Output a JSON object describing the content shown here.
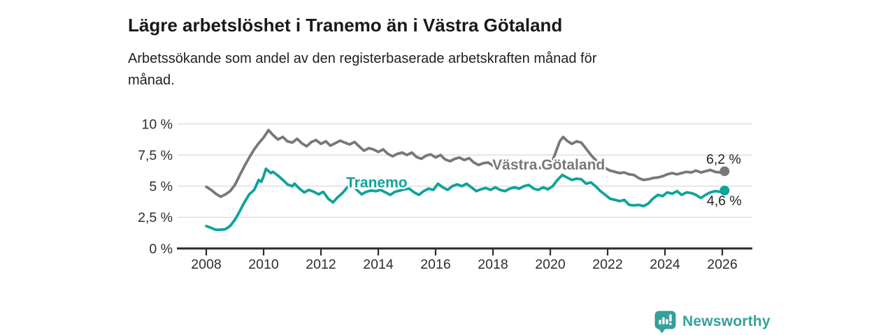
{
  "header": {
    "title": "Lägre arbetslöshet i Tranemo än i Västra Götaland",
    "subtitle_lines": [
      "Arbetssökande som andel av den registerbaserade arbetskraften månad för",
      "månad."
    ]
  },
  "footer": {
    "brand": "Newsworthy",
    "logo_icon": "bar-chart-speech-bubble-icon"
  },
  "colors": {
    "series_gray": "#787878",
    "series_teal": "#0fa39a",
    "axis": "#2b2b2b",
    "tick_text": "#2d2d2d",
    "grid": "#d9d9d9",
    "annotation_text": "#222222",
    "logo_teal": "#36a09a",
    "background": "#ffffff"
  },
  "chart_data": {
    "type": "line",
    "unit": "%",
    "x_domain": [
      2007,
      2027
    ],
    "y_domain": [
      0,
      10
    ],
    "grid": true,
    "legend_position": "inline-labels-on-lines",
    "y_ticks": [
      {
        "value": 0,
        "label": "0 %"
      },
      {
        "value": 2.5,
        "label": "2,5 %"
      },
      {
        "value": 5,
        "label": "5 %"
      },
      {
        "value": 7.5,
        "label": "7,5 %"
      },
      {
        "value": 10,
        "label": "10 %"
      }
    ],
    "x_ticks": [
      {
        "value": 2008,
        "label": "2008"
      },
      {
        "value": 2010,
        "label": "2010"
      },
      {
        "value": 2012,
        "label": "2012"
      },
      {
        "value": 2014,
        "label": "2014"
      },
      {
        "value": 2016,
        "label": "2016"
      },
      {
        "value": 2018,
        "label": "2018"
      },
      {
        "value": 2020,
        "label": "2020"
      },
      {
        "value": 2022,
        "label": "2022"
      },
      {
        "value": 2024,
        "label": "2024"
      },
      {
        "value": 2026,
        "label": "2026"
      }
    ],
    "series": [
      {
        "name": "Västra Götaland",
        "color": "#787878",
        "end_value": 6.2,
        "end_label": "6,2 %",
        "points": [
          [
            2008.0,
            4.95
          ],
          [
            2008.17,
            4.7
          ],
          [
            2008.33,
            4.4
          ],
          [
            2008.5,
            4.15
          ],
          [
            2008.67,
            4.35
          ],
          [
            2008.83,
            4.6
          ],
          [
            2009.0,
            5.1
          ],
          [
            2009.17,
            5.9
          ],
          [
            2009.33,
            6.6
          ],
          [
            2009.5,
            7.3
          ],
          [
            2009.67,
            7.95
          ],
          [
            2009.83,
            8.45
          ],
          [
            2010.0,
            8.9
          ],
          [
            2010.17,
            9.5
          ],
          [
            2010.33,
            9.1
          ],
          [
            2010.5,
            8.75
          ],
          [
            2010.67,
            8.95
          ],
          [
            2010.83,
            8.6
          ],
          [
            2011.0,
            8.5
          ],
          [
            2011.17,
            8.8
          ],
          [
            2011.33,
            8.45
          ],
          [
            2011.5,
            8.2
          ],
          [
            2011.67,
            8.55
          ],
          [
            2011.83,
            8.7
          ],
          [
            2012.0,
            8.4
          ],
          [
            2012.17,
            8.6
          ],
          [
            2012.33,
            8.25
          ],
          [
            2012.5,
            8.45
          ],
          [
            2012.67,
            8.65
          ],
          [
            2012.83,
            8.5
          ],
          [
            2013.0,
            8.35
          ],
          [
            2013.17,
            8.55
          ],
          [
            2013.33,
            8.2
          ],
          [
            2013.5,
            7.85
          ],
          [
            2013.67,
            8.05
          ],
          [
            2013.83,
            7.95
          ],
          [
            2014.0,
            7.75
          ],
          [
            2014.17,
            7.95
          ],
          [
            2014.33,
            7.6
          ],
          [
            2014.5,
            7.4
          ],
          [
            2014.67,
            7.6
          ],
          [
            2014.83,
            7.7
          ],
          [
            2015.0,
            7.5
          ],
          [
            2015.17,
            7.7
          ],
          [
            2015.33,
            7.35
          ],
          [
            2015.5,
            7.2
          ],
          [
            2015.67,
            7.45
          ],
          [
            2015.83,
            7.55
          ],
          [
            2016.0,
            7.3
          ],
          [
            2016.17,
            7.5
          ],
          [
            2016.33,
            7.15
          ],
          [
            2016.5,
            7.0
          ],
          [
            2016.67,
            7.2
          ],
          [
            2016.83,
            7.3
          ],
          [
            2017.0,
            7.1
          ],
          [
            2017.17,
            7.25
          ],
          [
            2017.33,
            6.9
          ],
          [
            2017.5,
            6.7
          ],
          [
            2017.67,
            6.85
          ],
          [
            2017.83,
            6.9
          ],
          [
            2018.0,
            6.65
          ],
          [
            2018.17,
            6.8
          ],
          [
            2018.33,
            6.5
          ],
          [
            2018.5,
            6.4
          ],
          [
            2018.67,
            6.55
          ],
          [
            2018.83,
            6.6
          ],
          [
            2019.0,
            6.5
          ],
          [
            2019.17,
            6.6
          ],
          [
            2019.33,
            6.4
          ],
          [
            2019.5,
            6.35
          ],
          [
            2019.67,
            6.5
          ],
          [
            2019.83,
            6.55
          ],
          [
            2020.0,
            6.6
          ],
          [
            2020.17,
            7.6
          ],
          [
            2020.33,
            8.6
          ],
          [
            2020.45,
            8.95
          ],
          [
            2020.58,
            8.65
          ],
          [
            2020.75,
            8.4
          ],
          [
            2020.92,
            8.6
          ],
          [
            2021.08,
            8.5
          ],
          [
            2021.25,
            8.0
          ],
          [
            2021.42,
            7.5
          ],
          [
            2021.58,
            7.1
          ],
          [
            2021.75,
            6.8
          ],
          [
            2021.92,
            6.45
          ],
          [
            2022.08,
            6.25
          ],
          [
            2022.25,
            6.15
          ],
          [
            2022.42,
            6.05
          ],
          [
            2022.58,
            6.1
          ],
          [
            2022.75,
            5.95
          ],
          [
            2022.92,
            5.9
          ],
          [
            2023.08,
            5.65
          ],
          [
            2023.25,
            5.5
          ],
          [
            2023.42,
            5.55
          ],
          [
            2023.58,
            5.65
          ],
          [
            2023.75,
            5.7
          ],
          [
            2023.92,
            5.8
          ],
          [
            2024.08,
            5.95
          ],
          [
            2024.25,
            6.05
          ],
          [
            2024.42,
            5.95
          ],
          [
            2024.58,
            6.05
          ],
          [
            2024.75,
            6.15
          ],
          [
            2024.92,
            6.1
          ],
          [
            2025.08,
            6.25
          ],
          [
            2025.25,
            6.1
          ],
          [
            2025.42,
            6.2
          ],
          [
            2025.58,
            6.3
          ],
          [
            2025.75,
            6.15
          ],
          [
            2025.92,
            6.1
          ],
          [
            2026.08,
            6.2
          ]
        ]
      },
      {
        "name": "Tranemo",
        "color": "#0fa39a",
        "end_value": 4.6,
        "end_label": "4,6 %",
        "points": [
          [
            2008.0,
            1.8
          ],
          [
            2008.17,
            1.65
          ],
          [
            2008.33,
            1.5
          ],
          [
            2008.5,
            1.5
          ],
          [
            2008.67,
            1.55
          ],
          [
            2008.83,
            1.8
          ],
          [
            2009.0,
            2.3
          ],
          [
            2009.17,
            3.0
          ],
          [
            2009.33,
            3.7
          ],
          [
            2009.5,
            4.35
          ],
          [
            2009.67,
            4.7
          ],
          [
            2009.83,
            5.5
          ],
          [
            2009.92,
            5.35
          ],
          [
            2010.0,
            5.8
          ],
          [
            2010.08,
            6.4
          ],
          [
            2010.25,
            6.05
          ],
          [
            2010.33,
            6.15
          ],
          [
            2010.5,
            5.85
          ],
          [
            2010.67,
            5.5
          ],
          [
            2010.83,
            5.15
          ],
          [
            2011.0,
            5.0
          ],
          [
            2011.08,
            5.2
          ],
          [
            2011.25,
            4.8
          ],
          [
            2011.42,
            4.5
          ],
          [
            2011.58,
            4.7
          ],
          [
            2011.75,
            4.55
          ],
          [
            2011.92,
            4.35
          ],
          [
            2012.08,
            4.55
          ],
          [
            2012.25,
            4.0
          ],
          [
            2012.42,
            3.7
          ],
          [
            2012.58,
            4.1
          ],
          [
            2012.75,
            4.45
          ],
          [
            2012.92,
            4.9
          ],
          [
            2013.08,
            5.15
          ],
          [
            2013.25,
            4.7
          ],
          [
            2013.42,
            4.35
          ],
          [
            2013.58,
            4.55
          ],
          [
            2013.75,
            4.65
          ],
          [
            2013.92,
            4.6
          ],
          [
            2014.08,
            4.7
          ],
          [
            2014.25,
            4.5
          ],
          [
            2014.42,
            4.3
          ],
          [
            2014.58,
            4.55
          ],
          [
            2014.75,
            4.65
          ],
          [
            2014.92,
            4.75
          ],
          [
            2015.08,
            4.8
          ],
          [
            2015.25,
            4.5
          ],
          [
            2015.42,
            4.3
          ],
          [
            2015.58,
            4.6
          ],
          [
            2015.75,
            4.8
          ],
          [
            2015.92,
            4.7
          ],
          [
            2016.08,
            5.2
          ],
          [
            2016.25,
            4.9
          ],
          [
            2016.42,
            4.7
          ],
          [
            2016.58,
            5.0
          ],
          [
            2016.75,
            5.15
          ],
          [
            2016.92,
            5.0
          ],
          [
            2017.08,
            5.2
          ],
          [
            2017.25,
            4.9
          ],
          [
            2017.42,
            4.6
          ],
          [
            2017.58,
            4.75
          ],
          [
            2017.75,
            4.85
          ],
          [
            2017.92,
            4.7
          ],
          [
            2018.08,
            4.9
          ],
          [
            2018.25,
            4.7
          ],
          [
            2018.42,
            4.6
          ],
          [
            2018.58,
            4.8
          ],
          [
            2018.75,
            4.9
          ],
          [
            2018.92,
            4.8
          ],
          [
            2019.08,
            5.0
          ],
          [
            2019.25,
            5.1
          ],
          [
            2019.42,
            4.8
          ],
          [
            2019.58,
            4.7
          ],
          [
            2019.75,
            4.9
          ],
          [
            2019.92,
            4.75
          ],
          [
            2020.08,
            5.0
          ],
          [
            2020.25,
            5.5
          ],
          [
            2020.42,
            5.9
          ],
          [
            2020.58,
            5.7
          ],
          [
            2020.75,
            5.5
          ],
          [
            2020.92,
            5.6
          ],
          [
            2021.08,
            5.55
          ],
          [
            2021.25,
            5.2
          ],
          [
            2021.42,
            5.3
          ],
          [
            2021.58,
            5.0
          ],
          [
            2021.75,
            4.6
          ],
          [
            2021.92,
            4.3
          ],
          [
            2022.08,
            4.0
          ],
          [
            2022.25,
            3.9
          ],
          [
            2022.42,
            3.8
          ],
          [
            2022.58,
            3.9
          ],
          [
            2022.75,
            3.5
          ],
          [
            2022.92,
            3.45
          ],
          [
            2023.08,
            3.5
          ],
          [
            2023.25,
            3.4
          ],
          [
            2023.42,
            3.6
          ],
          [
            2023.58,
            4.0
          ],
          [
            2023.75,
            4.3
          ],
          [
            2023.92,
            4.2
          ],
          [
            2024.08,
            4.5
          ],
          [
            2024.25,
            4.4
          ],
          [
            2024.42,
            4.6
          ],
          [
            2024.58,
            4.3
          ],
          [
            2024.75,
            4.5
          ],
          [
            2024.92,
            4.45
          ],
          [
            2025.08,
            4.3
          ],
          [
            2025.25,
            4.05
          ],
          [
            2025.42,
            4.3
          ],
          [
            2025.58,
            4.5
          ],
          [
            2025.75,
            4.6
          ],
          [
            2025.92,
            4.55
          ],
          [
            2026.08,
            4.65
          ]
        ]
      }
    ],
    "series_labels": [
      {
        "text": "Västra Götaland",
        "x": 2017.98,
        "y": 6.75,
        "color": "#787878"
      },
      {
        "text": "Tranemo",
        "x": 2012.88,
        "y": 5.32,
        "color": "#0fa39a"
      }
    ],
    "value_labels": [
      {
        "text": "6,2 %",
        "x": 2025.44,
        "y": 7.2,
        "color": "#222222"
      },
      {
        "text": "4,6 %",
        "x": 2025.46,
        "y": 3.85,
        "color": "#222222"
      }
    ]
  }
}
